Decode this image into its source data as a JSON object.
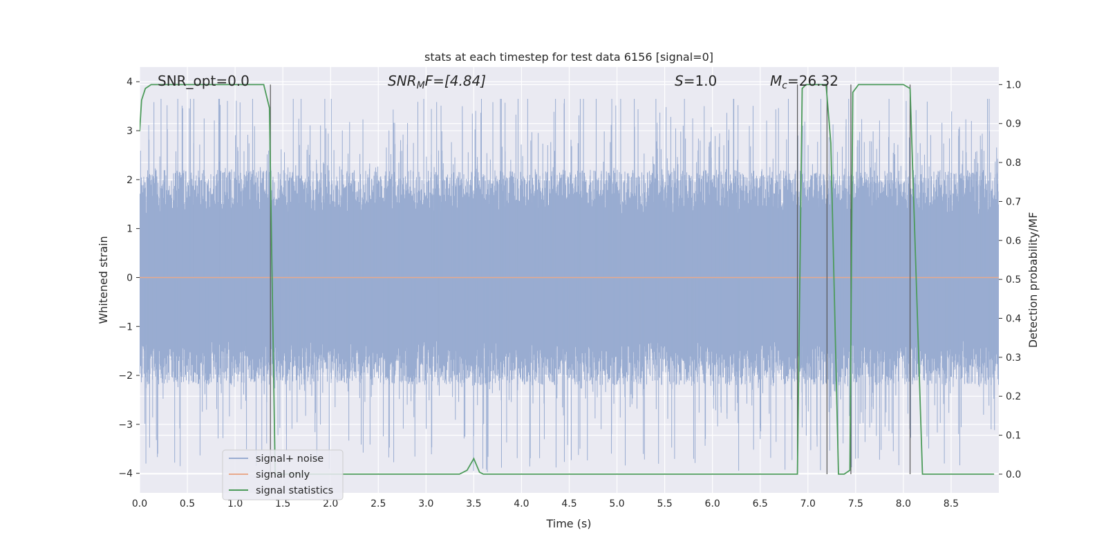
{
  "chart_data": {
    "type": "line",
    "title": "stats at each timestep for test data 6156 [signal=0]",
    "xlabel": "Time (s)",
    "ylabel": "Whitened strain",
    "y2label": "Detection probability/MF",
    "xlim": [
      0,
      9.0
    ],
    "ylim": [
      -4.4,
      4.3
    ],
    "y2lim": [
      -0.048,
      1.045
    ],
    "x_ticks": [
      0.0,
      0.5,
      1.0,
      1.5,
      2.0,
      2.5,
      3.0,
      3.5,
      4.0,
      4.5,
      5.0,
      5.5,
      6.0,
      6.5,
      7.0,
      7.5,
      8.0,
      8.5
    ],
    "x_tick_labels": [
      "0.0",
      "0.5",
      "1.0",
      "1.5",
      "2.0",
      "2.5",
      "3.0",
      "3.5",
      "4.0",
      "4.5",
      "5.0",
      "5.5",
      "6.0",
      "6.5",
      "7.0",
      "7.5",
      "8.0",
      "8.5"
    ],
    "y_ticks": [
      -4,
      -3,
      -2,
      -1,
      0,
      1,
      2,
      3,
      4
    ],
    "y_tick_labels": [
      "−4",
      "−3",
      "−2",
      "−1",
      "0",
      "1",
      "2",
      "3",
      "4"
    ],
    "y2_ticks": [
      0.0,
      0.1,
      0.2,
      0.3,
      0.4,
      0.5,
      0.6,
      0.7,
      0.8,
      0.9,
      1.0
    ],
    "y2_tick_labels": [
      "0.0",
      "0.1",
      "0.2",
      "0.3",
      "0.4",
      "0.5",
      "0.6",
      "0.7",
      "0.8",
      "0.9",
      "1.0"
    ],
    "grid": true,
    "legend_position": "lower-left",
    "annotations": [
      {
        "main": "SNR_opt=0.0",
        "sub": "",
        "rest": ""
      },
      {
        "main": "SNR",
        "sub": "M",
        "rest": "F=[4.84]"
      },
      {
        "main": "S",
        "sub": "",
        "rest": "=1.0"
      },
      {
        "main": "M",
        "sub": "c",
        "rest": "=26.32"
      }
    ],
    "series": [
      {
        "name": "signal+ noise",
        "color": "#99acd1",
        "axis": "left",
        "style": "dense noise, approx. uniform white noise spanning about -2 to 2 with occasional spikes reaching about -4 to 3.6"
      },
      {
        "name": "signal only",
        "color": "#e8a98c",
        "axis": "left",
        "x": [
          0.0,
          9.0
        ],
        "y": [
          0.0,
          0.0
        ]
      },
      {
        "name": "signal statistics",
        "color": "#4c9b5a",
        "axis": "right",
        "x": [
          0.0,
          0.02,
          0.06,
          0.12,
          0.2,
          1.0,
          1.3,
          1.36,
          1.42,
          1.44,
          2.0,
          2.8,
          3.0,
          3.35,
          3.43,
          3.5,
          3.56,
          3.6,
          4.0,
          5.0,
          6.0,
          6.89,
          6.94,
          6.98,
          7.1,
          7.19,
          7.24,
          7.32,
          7.38,
          7.44,
          7.47,
          7.53,
          7.6,
          7.8,
          8.0,
          8.07,
          8.2,
          8.5,
          8.95
        ],
        "y": [
          0.88,
          0.96,
          0.99,
          1.0,
          1.0,
          1.0,
          1.0,
          0.94,
          0.0,
          0.0,
          0.0,
          0.0,
          0.0,
          0.0,
          0.01,
          0.04,
          0.005,
          0.0,
          0.0,
          0.0,
          0.0,
          0.0,
          0.99,
          1.0,
          1.0,
          1.0,
          0.85,
          0.0,
          0.0,
          0.01,
          0.98,
          1.0,
          1.0,
          1.0,
          1.0,
          0.99,
          0.0,
          0.0,
          0.0
        ]
      }
    ],
    "vertical_markers": [
      1.37,
      6.89,
      7.2,
      7.45,
      8.07
    ]
  }
}
